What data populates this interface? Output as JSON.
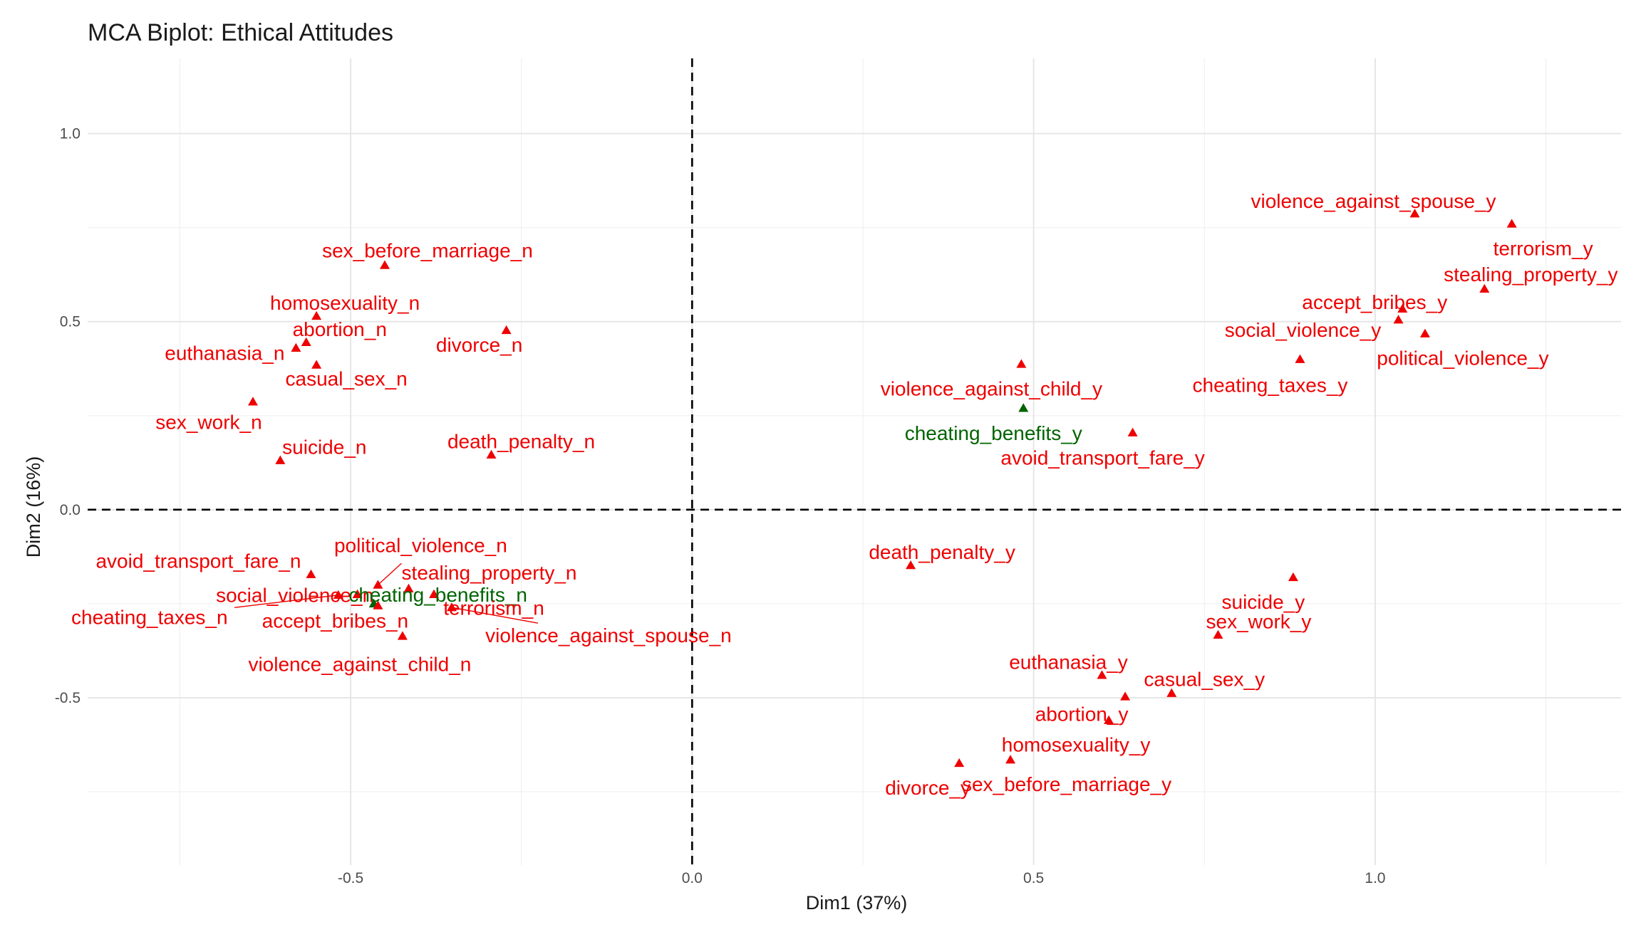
{
  "chart_data": {
    "type": "scatter",
    "title": "MCA Biplot: Ethical Attitudes",
    "xlabel": "Dim1 (37%)",
    "ylabel": "Dim2 (16%)",
    "xlim": [
      -0.885,
      1.36
    ],
    "ylim": [
      -0.945,
      1.2
    ],
    "xticks": [
      -0.5,
      0.0,
      0.5,
      1.0
    ],
    "xtick_labels": [
      "-0.5",
      "0.0",
      "0.5",
      "1.0"
    ],
    "yticks": [
      -0.5,
      0.0,
      0.5,
      1.0
    ],
    "ytick_labels": [
      "-0.5",
      "0.0",
      "0.5",
      "1.0"
    ],
    "reference_lines": {
      "x": 0,
      "y": 0
    },
    "colors": {
      "default": "#ee0000",
      "highlight": "#006400"
    },
    "points": [
      {
        "label": "sex_before_marriage_n",
        "x": -0.45,
        "y": 0.65,
        "group": "default"
      },
      {
        "label": "homosexuality_n",
        "x": -0.55,
        "y": 0.515,
        "group": "default"
      },
      {
        "label": "abortion_n",
        "x": -0.565,
        "y": 0.445,
        "group": "default"
      },
      {
        "label": "euthanasia_n",
        "x": -0.58,
        "y": 0.43,
        "group": "default"
      },
      {
        "label": "casual_sex_n",
        "x": -0.55,
        "y": 0.385,
        "group": "default"
      },
      {
        "label": "divorce_n",
        "x": -0.272,
        "y": 0.477,
        "group": "default"
      },
      {
        "label": "sex_work_n",
        "x": -0.643,
        "y": 0.287,
        "group": "default"
      },
      {
        "label": "suicide_n",
        "x": -0.603,
        "y": 0.131,
        "group": "default"
      },
      {
        "label": "death_penalty_n",
        "x": -0.294,
        "y": 0.146,
        "group": "default"
      },
      {
        "label": "avoid_transport_fare_n",
        "x": -0.558,
        "y": -0.172,
        "group": "default"
      },
      {
        "label": "political_violence_n",
        "x": -0.46,
        "y": -0.2,
        "group": "default"
      },
      {
        "label": "stealing_property_n",
        "x": -0.415,
        "y": -0.21,
        "group": "default"
      },
      {
        "label": "social_violence_n",
        "x": -0.49,
        "y": -0.225,
        "group": "default"
      },
      {
        "label": "cheating_taxes_n",
        "x": -0.518,
        "y": -0.227,
        "group": "default"
      },
      {
        "label": "cheating_benefits_n",
        "x": -0.466,
        "y": -0.25,
        "group": "highlight"
      },
      {
        "label": "accept_bribes_n",
        "x": -0.46,
        "y": -0.255,
        "group": "default"
      },
      {
        "label": "terrorism_n",
        "x": -0.378,
        "y": -0.225,
        "group": "default"
      },
      {
        "label": "violence_against_spouse_n",
        "x": -0.352,
        "y": -0.26,
        "group": "default"
      },
      {
        "label": "violence_against_child_n",
        "x": -0.424,
        "y": -0.336,
        "group": "default"
      },
      {
        "label": "violence_against_spouse_y",
        "x": 1.058,
        "y": 0.787,
        "group": "default"
      },
      {
        "label": "terrorism_y",
        "x": 1.2,
        "y": 0.76,
        "group": "default"
      },
      {
        "label": "stealing_property_y",
        "x": 1.16,
        "y": 0.587,
        "group": "default"
      },
      {
        "label": "accept_bribes_y",
        "x": 1.04,
        "y": 0.534,
        "group": "default"
      },
      {
        "label": "social_violence_y",
        "x": 1.034,
        "y": 0.505,
        "group": "default"
      },
      {
        "label": "political_violence_y",
        "x": 1.073,
        "y": 0.468,
        "group": "default"
      },
      {
        "label": "cheating_taxes_y",
        "x": 0.89,
        "y": 0.4,
        "group": "default"
      },
      {
        "label": "violence_against_child_y",
        "x": 0.482,
        "y": 0.387,
        "group": "default"
      },
      {
        "label": "cheating_benefits_y",
        "x": 0.485,
        "y": 0.27,
        "group": "highlight"
      },
      {
        "label": "avoid_transport_fare_y",
        "x": 0.645,
        "y": 0.205,
        "group": "default"
      },
      {
        "label": "death_penalty_y",
        "x": 0.32,
        "y": -0.148,
        "group": "default"
      },
      {
        "label": "suicide_y",
        "x": 0.88,
        "y": -0.18,
        "group": "default"
      },
      {
        "label": "sex_work_y",
        "x": 0.77,
        "y": -0.333,
        "group": "default"
      },
      {
        "label": "euthanasia_y",
        "x": 0.6,
        "y": -0.44,
        "group": "default"
      },
      {
        "label": "casual_sex_y",
        "x": 0.702,
        "y": -0.488,
        "group": "default"
      },
      {
        "label": "abortion_y",
        "x": 0.634,
        "y": -0.497,
        "group": "default"
      },
      {
        "label": "homosexuality_y",
        "x": 0.61,
        "y": -0.56,
        "group": "default"
      },
      {
        "label": "divorce_y",
        "x": 0.391,
        "y": -0.674,
        "group": "default"
      },
      {
        "label": "sex_before_marriage_y",
        "x": 0.466,
        "y": -0.665,
        "group": "default"
      }
    ]
  }
}
